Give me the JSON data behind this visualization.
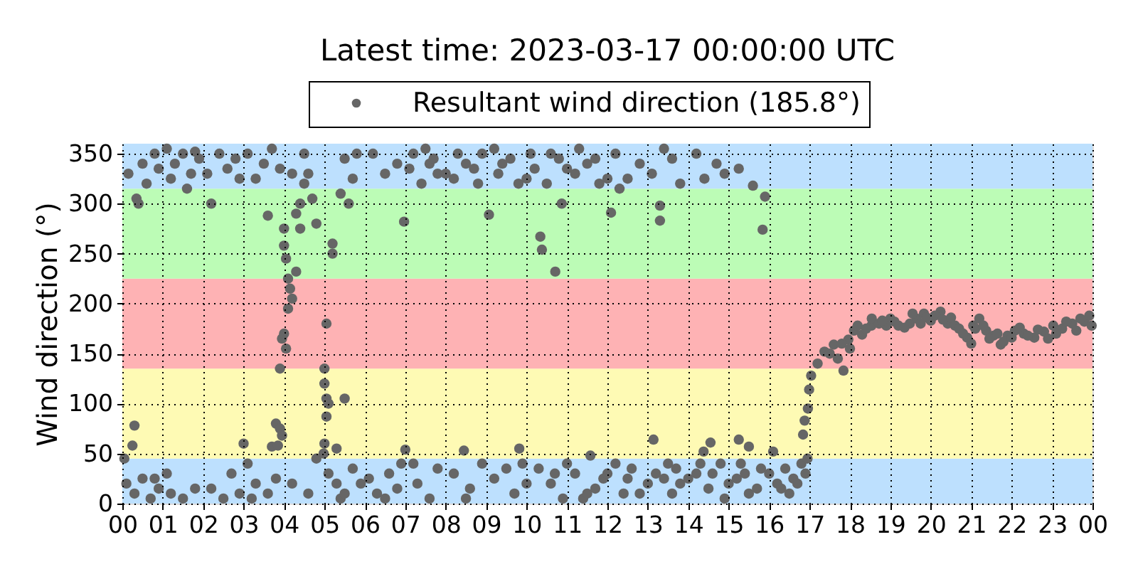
{
  "chart_data": {
    "type": "scatter",
    "title": "Latest time: 2023-03-17 00:00:00 UTC",
    "ylabel": "Wind direction (°)",
    "xlim": [
      0,
      24
    ],
    "xticks": [
      {
        "value": 0,
        "label": "00"
      },
      {
        "value": 1,
        "label": "01"
      },
      {
        "value": 2,
        "label": "02"
      },
      {
        "value": 3,
        "label": "03"
      },
      {
        "value": 4,
        "label": "04"
      },
      {
        "value": 5,
        "label": "05"
      },
      {
        "value": 6,
        "label": "06"
      },
      {
        "value": 7,
        "label": "07"
      },
      {
        "value": 8,
        "label": "08"
      },
      {
        "value": 9,
        "label": "09"
      },
      10,
      11,
      12,
      13,
      14,
      15,
      16,
      17,
      18,
      19,
      20,
      21,
      22,
      23,
      {
        "value": 24,
        "label": "00"
      }
    ],
    "ylim": [
      0,
      360
    ],
    "yticks": [
      0,
      50,
      100,
      150,
      200,
      250,
      300,
      350
    ],
    "grid": true,
    "legend": "top",
    "marker": "circle",
    "bands": [
      {
        "axis": "y",
        "from": 0,
        "to": 45,
        "color": "#bde0fe"
      },
      {
        "axis": "y",
        "from": 45,
        "to": 135,
        "color": "#fefab4"
      },
      {
        "axis": "y",
        "from": 135,
        "to": 225,
        "color": "#feb2b4"
      },
      {
        "axis": "y",
        "from": 225,
        "to": 315,
        "color": "#bcfcb6"
      },
      {
        "axis": "y",
        "from": 315,
        "to": 360,
        "color": "#bde0fe"
      }
    ],
    "series": [
      {
        "name": "Resultant wind direction (185.8°)",
        "color": "#666666",
        "x": [
          0.05,
          0.1,
          0.15,
          0.25,
          0.3,
          0.3,
          0.35,
          0.4,
          0.5,
          0.5,
          0.6,
          0.7,
          0.8,
          0.8,
          0.9,
          0.9,
          1.1,
          1.1,
          1.2,
          1.2,
          1.3,
          1.5,
          1.5,
          1.6,
          1.7,
          1.8,
          1.8,
          1.9,
          2.1,
          2.2,
          2.2,
          2.4,
          2.5,
          2.6,
          2.7,
          2.8,
          2.9,
          2.9,
          3.0,
          3.1,
          3.1,
          3.2,
          3.3,
          3.3,
          3.5,
          3.6,
          3.6,
          3.7,
          3.7,
          3.8,
          3.8,
          3.85,
          3.9,
          3.9,
          3.9,
          3.95,
          3.95,
          4.0,
          4.0,
          4.0,
          4.05,
          4.05,
          4.1,
          4.1,
          4.15,
          4.2,
          4.2,
          4.2,
          4.3,
          4.3,
          4.4,
          4.4,
          4.5,
          4.5,
          4.6,
          4.6,
          4.7,
          4.8,
          4.8,
          4.98,
          5.0,
          5.0,
          5.0,
          5.05,
          5.05,
          5.05,
          5.1,
          5.1,
          5.2,
          5.2,
          5.3,
          5.3,
          5.4,
          5.4,
          5.5,
          5.5,
          5.5,
          5.6,
          5.7,
          5.7,
          5.8,
          5.9,
          6.1,
          6.2,
          6.3,
          6.5,
          6.5,
          6.6,
          6.8,
          6.8,
          6.9,
          6.97,
          7.0,
          7.1,
          7.2,
          7.2,
          7.3,
          7.4,
          7.5,
          7.6,
          7.6,
          7.8,
          7.8,
          8.2,
          8.2,
          8.3,
          8.45,
          8.5,
          8.5,
          8.6,
          8.7,
          8.8,
          8.9,
          9.07,
          9.2,
          9.2,
          9.3,
          9.5,
          9.6,
          9.7,
          9.8,
          9.82,
          9.9,
          10.1,
          10.2,
          10.3,
          10.34,
          10.38,
          10.5,
          10.6,
          10.71,
          10.8,
          10.87,
          10.9,
          11.2,
          11.2,
          11.3,
          11.4,
          11.5,
          11.5,
          11.58,
          11.8,
          11.9,
          12.09,
          12.2,
          12.2,
          12.3,
          12.5,
          12.5,
          12.6,
          12.8,
          12.8,
          13.1,
          13.14,
          13.2,
          13.3,
          13.3,
          13.4,
          13.5,
          13.6,
          13.6,
          13.8,
          13.8,
          14.2,
          14.2,
          14.38,
          14.4,
          14.5,
          14.55,
          14.7,
          14.8,
          14.9,
          14.9,
          15.2,
          15.25,
          15.25,
          15.3,
          15.5,
          15.5,
          15.6,
          15.8,
          15.84,
          15.9,
          16.1,
          16.2,
          16.4,
          16.5,
          16.6,
          16.8,
          16.84,
          16.88,
          16.9,
          16.95,
          16.96,
          16.99,
          17.04,
          17.2,
          17.37,
          17.6,
          17.84,
          17.96,
          18.1,
          18.19,
          18.3,
          18.53,
          18.54,
          18.72,
          19.0,
          19.2,
          19.48,
          19.65,
          19.83,
          20.0,
          20.24,
          20.42,
          20.6,
          20.9,
          21.05,
          21.2,
          21.37,
          21.55,
          21.73,
          21.9,
          22.08,
          22.3,
          22.56,
          22.8,
          23.03,
          23.25,
          23.5,
          23.6,
          23.8,
          23.92,
          18.9,
          19.1,
          19.35,
          19.55,
          19.75,
          19.9,
          20.1,
          20.3,
          20.5,
          20.7,
          20.8,
          21.0,
          21.1,
          21.3,
          21.45,
          21.65,
          21.8,
          22.0,
          22.2,
          22.4,
          22.65,
          22.9,
          23.1,
          23.35,
          23.7,
          23.98,
          17.5,
          17.7,
          17.8,
          18.0,
          18.4,
          18.8,
          13.0,
          13.4,
          13.7,
          14.0,
          14.3,
          14.6,
          15.0,
          15.4,
          15.7,
          16.0,
          16.3,
          16.7,
          10.0,
          10.7,
          11.0,
          11.7,
          12.0,
          12.4,
          7.7,
          8.0,
          8.9,
          9.4,
          10.0,
          10.6,
          11.0,
          11.7,
          12.0
        ],
        "values": [
          45,
          20,
          330,
          58,
          78,
          10,
          305,
          300,
          340,
          25,
          320,
          5,
          350,
          25,
          335,
          15,
          355,
          30,
          325,
          10,
          340,
          350,
          5,
          315,
          330,
          352,
          15,
          345,
          330,
          300,
          15,
          350,
          5,
          335,
          30,
          345,
          325,
          10,
          60,
          350,
          40,
          5,
          325,
          20,
          340,
          288,
          10,
          355,
          57,
          80,
          25,
          58,
          335,
          75,
          135,
          165,
          68,
          275,
          258,
          170,
          245,
          155,
          225,
          195,
          215,
          205,
          330,
          20,
          290,
          232,
          300,
          275,
          320,
          350,
          330,
          10,
          305,
          280,
          45,
          50,
          60,
          135,
          120,
          180,
          105,
          87,
          100,
          30,
          260,
          250,
          55,
          20,
          310,
          5,
          345,
          105,
          10,
          300,
          325,
          35,
          350,
          20,
          25,
          350,
          10,
          330,
          5,
          30,
          340,
          15,
          40,
          282,
          54,
          335,
          350,
          40,
          20,
          320,
          355,
          340,
          5,
          330,
          35,
          325,
          30,
          350,
          53,
          340,
          5,
          15,
          335,
          320,
          40,
          289,
          355,
          25,
          330,
          35,
          345,
          10,
          320,
          55,
          40,
          350,
          335,
          35,
          267,
          254,
          320,
          20,
          232,
          345,
          300,
          5,
          330,
          30,
          355,
          5,
          340,
          10,
          48,
          320,
          25,
          291,
          350,
          40,
          315,
          325,
          25,
          35,
          340,
          10,
          330,
          64,
          30,
          298,
          283,
          355,
          40,
          345,
          10,
          320,
          20,
          350,
          30,
          52,
          325,
          15,
          61,
          340,
          40,
          330,
          5,
          25,
          335,
          64,
          40,
          57,
          10,
          318,
          35,
          274,
          307,
          52,
          20,
          35,
          10,
          25,
          40,
          69,
          83,
          30,
          45,
          95,
          114,
          128,
          140,
          152,
          159,
          133,
          164,
          173,
          178,
          169,
          178,
          185,
          180,
          185,
          178,
          180,
          185,
          190,
          183,
          192,
          180,
          178,
          166,
          178,
          185,
          173,
          168,
          159,
          168,
          173,
          170,
          166,
          172,
          178,
          175,
          180,
          173,
          182,
          188,
          178,
          182,
          176,
          190,
          180,
          186,
          188,
          184,
          186,
          175,
          170,
          160,
          175,
          178,
          165,
          170,
          162,
          166,
          176,
          168,
          174,
          165,
          170,
          182,
          185,
          178,
          150,
          145,
          160,
          155,
          175,
          183,
          20,
          25,
          35,
          25,
          40,
          30,
          20,
          30,
          15,
          30,
          15,
          20,
          20,
          30,
          40,
          15,
          30,
          10,
          345,
          330,
          350,
          340,
          325,
          350,
          335,
          345,
          325
        ]
      }
    ]
  }
}
